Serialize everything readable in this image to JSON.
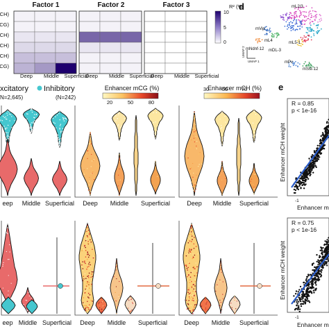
{
  "panel_letters": {
    "d": "d",
    "e": "e"
  },
  "heatmap": {
    "row_labels": [
      "mCH)",
      "mCG)",
      "mCH)",
      "mCH)",
      "mCH)",
      "mCG)"
    ],
    "factors": [
      "Factor 1",
      "Factor 2",
      "Factor 3"
    ],
    "columns": [
      "Deep",
      "Middle",
      "Superficial"
    ],
    "colorbar_label": "R² (%)",
    "colorbar_ticks": [
      "10",
      "5",
      "0"
    ],
    "range": [
      0,
      10
    ]
  },
  "violin_legend": {
    "excitatory": "xcitatory",
    "excitatory_n": "N=2,645)",
    "inhibitory": "Inhibitory",
    "inhibitory_n": "(N=242)"
  },
  "colorbars": {
    "mcg": {
      "label": "Enhancer mCG (%)",
      "ticks": [
        "20",
        "50",
        "80"
      ]
    },
    "mch": {
      "label": "Enhancer mCH (%)",
      "ticks": [
        "30",
        "50",
        "70"
      ]
    }
  },
  "xaxis_labels": [
    "eep",
    "Middle",
    "Superficial"
  ],
  "xaxis_labels_full": [
    "Deep",
    "Middle",
    "Superficial"
  ],
  "umap": {
    "axis_x": "UMAP 1",
    "axis_y": "UMAP 2",
    "labels": [
      "mL2/3",
      "mVip",
      "mL4",
      "mL5-1",
      "mNdnf-12",
      "mDL-3",
      "mPv",
      "mSst-12"
    ]
  },
  "scatter_top": {
    "r_text": "R = 0.85",
    "p_text": "p < 1e-16",
    "ylabel": "Enhancer mCH weight",
    "xlabel": "Enhancer mC",
    "x_tick": "-1"
  },
  "scatter_bottom": {
    "r_text": "R = 0.75",
    "p_text": "p < 1e-16",
    "ylabel": "Enhancer mCH weight",
    "xlabel": "Enhancer mch",
    "x_tick": "-1"
  },
  "colors": {
    "excitatory": "#e86a6a",
    "inhibitory": "#45c7cf",
    "heat_low": "#ffffff",
    "heat_high": "#1e006e",
    "regression": "#2a5cc8"
  },
  "chart_data": [
    {
      "type": "heatmap",
      "rows": 6,
      "factors": [
        "Factor 1",
        "Factor 2",
        "Factor 3"
      ],
      "columns": [
        "Deep",
        "Middle",
        "Superficial"
      ],
      "units": "R² (%)",
      "values": {
        "Factor 1": [
          [
            0.5,
            0.5,
            0.5
          ],
          [
            0.5,
            0.5,
            0.5
          ],
          [
            1,
            1,
            1
          ],
          [
            1.5,
            1.5,
            1.5
          ],
          [
            2.5,
            2.5,
            2.5
          ],
          [
            3,
            4,
            10
          ]
        ],
        "Factor 2": [
          [
            0.5,
            0.5,
            0.5
          ],
          [
            0.5,
            0.5,
            0.5
          ],
          [
            6,
            6,
            6
          ],
          [
            1,
            1,
            1
          ],
          [
            0.5,
            0.5,
            0.5
          ],
          [
            0.5,
            0.5,
            0.5
          ]
        ],
        "Factor 3": [
          [
            0,
            0,
            0
          ],
          [
            0,
            0,
            0
          ],
          [
            0,
            0,
            0
          ],
          [
            0,
            0,
            0
          ],
          [
            0,
            0,
            0
          ],
          [
            0,
            0,
            0
          ]
        ]
      }
    },
    {
      "type": "scatter",
      "r": 0.85,
      "p": "<1e-16"
    },
    {
      "type": "scatter",
      "r": 0.75,
      "p": "<1e-16"
    }
  ]
}
